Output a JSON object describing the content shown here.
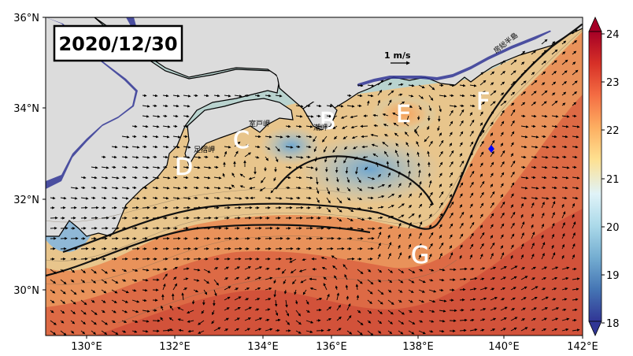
{
  "map": {
    "date": "2020/12/30",
    "lat_labels": [
      "36°N",
      "34°N",
      "32°N",
      "30°N"
    ],
    "lon_labels": [
      "130°E",
      "132°E",
      "134°E",
      "136°E",
      "138°E",
      "140°E",
      "142°E"
    ],
    "extent": {
      "lon_min": 129,
      "lon_max": 142,
      "lat_min": 29,
      "lat_max": 36
    },
    "colorbar": {
      "min": 18,
      "max": 24,
      "tick_labels": [
        "24",
        "23",
        "22",
        "21",
        "20",
        "19",
        "18"
      ],
      "colors": [
        "#313695",
        "#4575b4",
        "#74add1",
        "#abd9e9",
        "#e0f3f8",
        "#fee090",
        "#fdae61",
        "#f46d43",
        "#d73027",
        "#a50026"
      ]
    },
    "scale_arrow_label": "1 m/s",
    "region_labels": [
      "B",
      "C",
      "D",
      "E",
      "F",
      "G"
    ],
    "place_names": {
      "muroto": "室戸岬",
      "ashizuri": "足摺岬",
      "shiono": "潮岬",
      "boso": "房総半島"
    },
    "marker_color": "#0000ff",
    "land_color": "#dcdcdc"
  }
}
